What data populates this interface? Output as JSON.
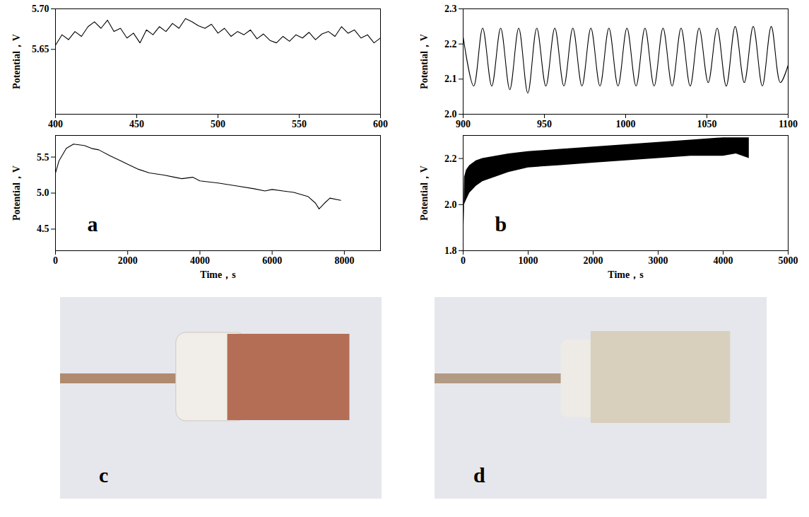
{
  "chart_data": [
    {
      "type": "line",
      "x": [
        400,
        404,
        408,
        412,
        416,
        420,
        424,
        428,
        432,
        436,
        440,
        444,
        448,
        452,
        456,
        460,
        464,
        468,
        472,
        476,
        480,
        484,
        488,
        492,
        496,
        500,
        504,
        508,
        512,
        516,
        520,
        524,
        528,
        532,
        536,
        540,
        544,
        548,
        552,
        556,
        560,
        564,
        568,
        572,
        576,
        580,
        584,
        588,
        592,
        596,
        600
      ],
      "series": [
        {
          "color": "#000000",
          "line_style": "solid",
          "values": [
            5.655,
            5.668,
            5.662,
            5.672,
            5.666,
            5.678,
            5.684,
            5.676,
            5.686,
            5.672,
            5.676,
            5.664,
            5.67,
            5.658,
            5.674,
            5.668,
            5.678,
            5.672,
            5.682,
            5.676,
            5.688,
            5.684,
            5.679,
            5.676,
            5.681,
            5.67,
            5.676,
            5.666,
            5.672,
            5.668,
            5.674,
            5.663,
            5.669,
            5.661,
            5.658,
            5.666,
            5.66,
            5.668,
            5.664,
            5.671,
            5.662,
            5.669,
            5.672,
            5.666,
            5.678,
            5.67,
            5.674,
            5.664,
            5.668,
            5.658,
            5.664
          ]
        }
      ],
      "xlim": [
        400,
        600
      ],
      "xticks": [
        400,
        450,
        500,
        550,
        600
      ],
      "ylim": [
        5.57,
        5.7
      ],
      "yticks": [
        5.65,
        {
          "value": 5.7,
          "label": "5.70"
        }
      ],
      "ylabel": "Potential，V"
    },
    {
      "type": "line",
      "x": [
        0,
        100,
        300,
        500,
        800,
        1000,
        1200,
        1500,
        1800,
        2000,
        2300,
        2600,
        3000,
        3300,
        3500,
        3800,
        4000,
        4500,
        5000,
        5500,
        5800,
        6000,
        6300,
        6600,
        7000,
        7200,
        7300,
        7450,
        7600,
        7900
      ],
      "series": [
        {
          "color": "#000000",
          "line_style": "solid",
          "values": [
            5.28,
            5.45,
            5.62,
            5.68,
            5.66,
            5.62,
            5.6,
            5.52,
            5.45,
            5.4,
            5.33,
            5.28,
            5.25,
            5.22,
            5.2,
            5.22,
            5.17,
            5.14,
            5.1,
            5.06,
            5.03,
            5.05,
            5.03,
            5.01,
            4.95,
            4.86,
            4.78,
            4.86,
            4.93,
            4.9
          ]
        }
      ],
      "xlim": [
        0,
        9000
      ],
      "xticks": [
        0,
        2000,
        4000,
        6000,
        8000
      ],
      "ylim": [
        4.2,
        5.8
      ],
      "yticks": [
        4.5,
        {
          "value": 5,
          "label": "5.0"
        },
        5.5
      ],
      "xlabel": "Time，s",
      "ylabel": "Potential，V",
      "annotation": "a"
    },
    {
      "type": "line",
      "x": [
        900,
        906.5,
        912.0,
        917.6,
        923.1,
        928.7,
        934.2,
        939.8,
        945.3,
        950.9,
        956.4,
        962.0,
        967.5,
        973.1,
        978.6,
        984.2,
        989.7,
        995.3,
        1000.8,
        1006.4,
        1011.9,
        1017.5,
        1023.0,
        1028.6,
        1034.1,
        1039.7,
        1045.2,
        1050.8,
        1056.3,
        1061.9,
        1067.4,
        1073.0,
        1078.5,
        1084.1,
        1089.6,
        1095.2,
        1100
      ],
      "series": [
        {
          "color": "#000000",
          "line_style": "smooth",
          "values": [
            2.22,
            2.08,
            2.245,
            2.08,
            2.245,
            2.07,
            2.245,
            2.06,
            2.245,
            2.08,
            2.245,
            2.08,
            2.245,
            2.08,
            2.245,
            2.08,
            2.245,
            2.08,
            2.245,
            2.08,
            2.245,
            2.08,
            2.245,
            2.08,
            2.245,
            2.08,
            2.245,
            2.09,
            2.245,
            2.08,
            2.25,
            2.09,
            2.25,
            2.08,
            2.25,
            2.09,
            2.14
          ]
        }
      ],
      "xlim": [
        900,
        1100
      ],
      "xticks": [
        900,
        950,
        1000,
        1050,
        1100
      ],
      "ylim": [
        2.0,
        2.3
      ],
      "yticks": [
        {
          "value": 2,
          "label": "2.0"
        },
        2.1,
        2.2,
        2.3
      ],
      "ylabel": "Potential，V"
    },
    {
      "type": "area",
      "x": [
        0,
        20,
        50,
        100,
        200,
        300,
        500,
        700,
        1000,
        1500,
        2000,
        2500,
        3000,
        3500,
        4000,
        4200,
        4400
      ],
      "low": [
        1.8,
        2.0,
        2.02,
        2.05,
        2.08,
        2.1,
        2.12,
        2.14,
        2.16,
        2.17,
        2.18,
        2.19,
        2.2,
        2.21,
        2.21,
        2.22,
        2.2
      ],
      "high": [
        1.8,
        2.12,
        2.15,
        2.17,
        2.19,
        2.2,
        2.21,
        2.22,
        2.23,
        2.24,
        2.25,
        2.26,
        2.27,
        2.28,
        2.29,
        2.29,
        2.29
      ],
      "color": "#000000",
      "xlim": [
        0,
        5000
      ],
      "xticks": [
        0,
        1000,
        2000,
        3000,
        4000,
        5000
      ],
      "ylim": [
        1.8,
        2.3
      ],
      "yticks": [
        1.8,
        {
          "value": 2,
          "label": "2.0"
        },
        2.2
      ],
      "xlabel": "Time，s",
      "ylabel": "Potential，V",
      "annotation": "b"
    }
  ],
  "photos": [
    {
      "label": "c"
    },
    {
      "label": "d"
    }
  ]
}
